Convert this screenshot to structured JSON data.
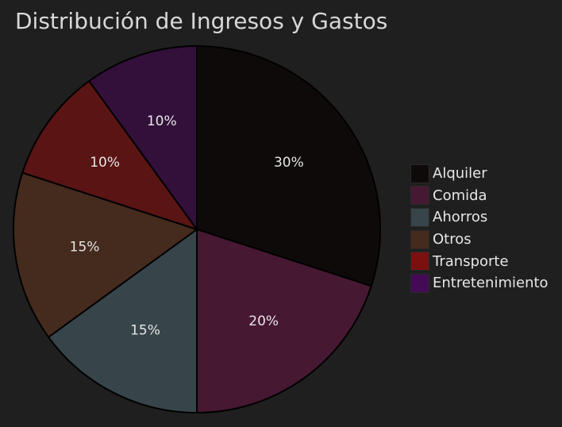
{
  "chart_data": {
    "type": "pie",
    "title": "Distribución de Ingresos y Gastos",
    "slices": [
      {
        "label": "Alquiler",
        "value": 30,
        "display": "30%",
        "color": "#0f0a0a"
      },
      {
        "label": "Comida",
        "value": 20,
        "display": "20%",
        "color": "#461832"
      },
      {
        "label": "Ahorros",
        "value": 15,
        "display": "15%",
        "color": "#37454a"
      },
      {
        "label": "Otros",
        "value": 15,
        "display": "15%",
        "color": "#452a1e"
      },
      {
        "label": "Transporte",
        "value": 10,
        "display": "10%",
        "color": "#5a1414"
      },
      {
        "label": "Entretenimiento",
        "value": 10,
        "display": "10%",
        "color": "#32103a"
      }
    ],
    "legend_position": "right",
    "start_angle": "12 o'clock",
    "direction": "clockwise"
  },
  "legend": {
    "items": [
      {
        "label": "Alquiler",
        "color": "#0f0a0a"
      },
      {
        "label": "Comida",
        "color": "#461832"
      },
      {
        "label": "Ahorros",
        "color": "#37454a"
      },
      {
        "label": "Otros",
        "color": "#452a1e"
      },
      {
        "label": "Transporte",
        "color": "#7a1010"
      },
      {
        "label": "Entretenimiento",
        "color": "#440a55"
      }
    ]
  }
}
